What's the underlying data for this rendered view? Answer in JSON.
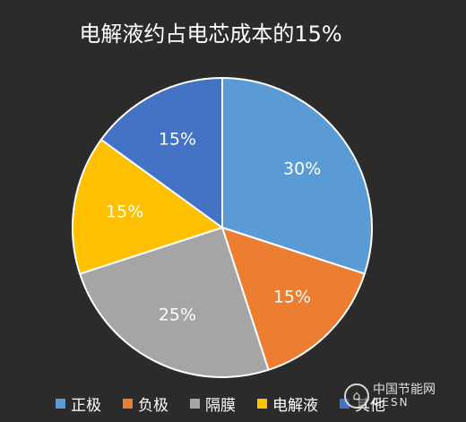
{
  "chart_data": {
    "type": "pie",
    "title": "电解液约占电芯成本的15%",
    "categories": [
      "正极",
      "负极",
      "隔膜",
      "电解液",
      "其他"
    ],
    "values": [
      30,
      15,
      25,
      15,
      15
    ],
    "value_labels": [
      "30%",
      "15%",
      "25%",
      "15%",
      "15%"
    ],
    "colors": [
      "#5b9bd5",
      "#ed7d31",
      "#a5a5a5",
      "#ffc000",
      "#4472c4"
    ],
    "legend_position": "bottom"
  },
  "legend": [
    {
      "label": "正极",
      "color": "#5b9bd5"
    },
    {
      "label": "负极",
      "color": "#ed7d31"
    },
    {
      "label": "隔膜",
      "color": "#a5a5a5"
    },
    {
      "label": "电解液",
      "color": "#ffc000"
    },
    {
      "label": "其他",
      "color": "#4472c4"
    }
  ],
  "watermark": {
    "cn": "中国节能网",
    "en": "CESN"
  }
}
